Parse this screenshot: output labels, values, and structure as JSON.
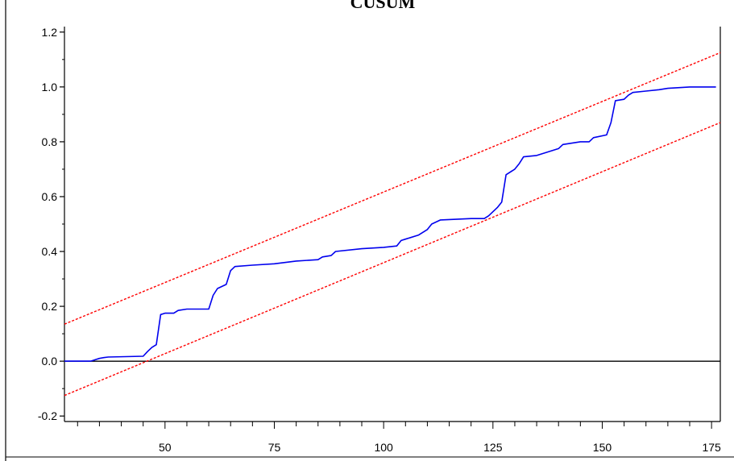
{
  "chart_data": {
    "type": "line",
    "title": "CUSUM",
    "xlim": [
      27,
      177
    ],
    "ylim": [
      -0.22,
      1.22
    ],
    "x_ticks": [
      50,
      75,
      100,
      125,
      150,
      175
    ],
    "y_ticks": [
      -0.2,
      0.0,
      0.2,
      0.4,
      0.6,
      0.8,
      1.0,
      1.2
    ],
    "x_tick_labels": [
      "50",
      "75",
      "100",
      "125",
      "150",
      "175"
    ],
    "y_tick_labels": [
      "-0.2",
      "0.0",
      "0.2",
      "0.4",
      "0.6",
      "0.8",
      "1.0",
      "1.2"
    ],
    "grid": false,
    "legend": false,
    "colors": {
      "cusum": "#0000ee",
      "bands": "#ff0000",
      "zero_line": "#000000"
    },
    "series": [
      {
        "role": "cusum",
        "x": [
          27,
          33,
          34,
          35,
          36,
          37,
          45,
          46,
          47,
          48,
          49,
          50,
          52,
          53,
          55,
          58,
          60,
          61,
          62,
          64,
          65,
          66,
          70,
          75,
          80,
          85,
          86,
          88,
          89,
          95,
          100,
          103,
          104,
          105,
          108,
          110,
          111,
          113,
          120,
          123,
          124,
          125,
          126,
          127,
          128,
          130,
          131,
          132,
          135,
          137,
          140,
          141,
          145,
          147,
          148,
          151,
          152,
          153,
          155,
          156,
          157,
          160,
          163,
          165,
          170,
          176
        ],
        "y": [
          0.0,
          0.0,
          0.005,
          0.01,
          0.013,
          0.015,
          0.018,
          0.035,
          0.05,
          0.06,
          0.17,
          0.175,
          0.175,
          0.185,
          0.19,
          0.19,
          0.19,
          0.24,
          0.265,
          0.28,
          0.33,
          0.345,
          0.35,
          0.355,
          0.365,
          0.37,
          0.38,
          0.385,
          0.4,
          0.41,
          0.415,
          0.42,
          0.44,
          0.445,
          0.46,
          0.48,
          0.5,
          0.515,
          0.52,
          0.52,
          0.53,
          0.545,
          0.56,
          0.58,
          0.68,
          0.7,
          0.72,
          0.745,
          0.75,
          0.76,
          0.775,
          0.79,
          0.8,
          0.8,
          0.815,
          0.825,
          0.87,
          0.95,
          0.955,
          0.97,
          0.98,
          0.985,
          0.99,
          0.995,
          1.0,
          1.0
        ]
      },
      {
        "role": "upper-band",
        "x": [
          27,
          177
        ],
        "y": [
          0.135,
          1.125
        ]
      },
      {
        "role": "lower-band",
        "x": [
          27,
          177
        ],
        "y": [
          -0.125,
          0.87
        ]
      }
    ]
  }
}
